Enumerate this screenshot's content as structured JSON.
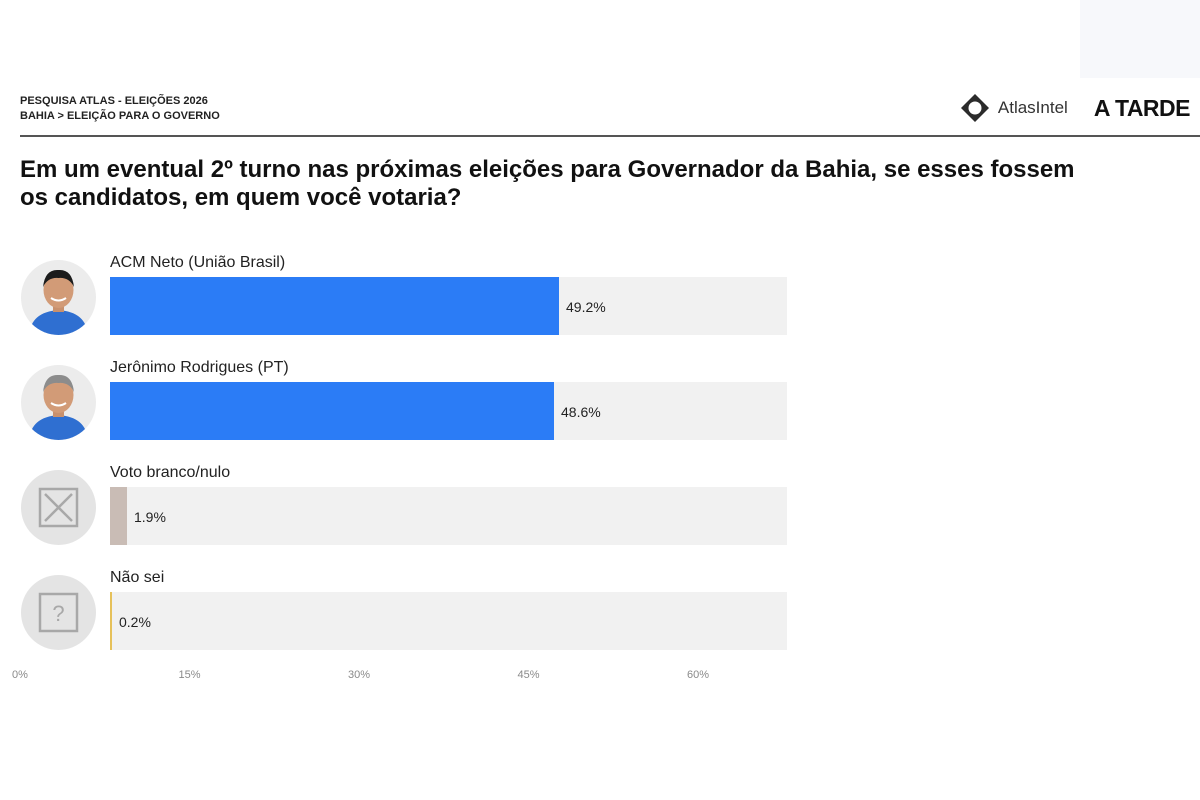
{
  "header": {
    "line1": "PESQUISA ATLAS - ELEIÇÕES 2026",
    "line2": "BAHIA > ELEIÇÃO PARA O GOVERNO",
    "brand_atlas": "AtlasIntel",
    "brand_atarde": "A TARDE"
  },
  "question": "Em um eventual 2º turno nas próximas eleições para Governador da Bahia, se esses fossem os candidatos, em quem você votaria?",
  "colors": {
    "candidate_bar": "#2b7cf6",
    "blank_bar": "#c9bcb5",
    "unsure_bar": "#e6c15a",
    "track": "#f1f1f1"
  },
  "chart_data": {
    "type": "bar",
    "orientation": "horizontal",
    "categories": [
      "ACM Neto (União Brasil)",
      "Jerônimo Rodrigues (PT)",
      "Voto branco/nulo",
      "Não sei"
    ],
    "values": [
      49.2,
      48.6,
      1.9,
      0.2
    ],
    "value_labels": [
      "49.2%",
      "48.6%",
      "1.9%",
      "0.2%"
    ],
    "icons": [
      "candidate-photo",
      "candidate-photo",
      "x-box-icon",
      "question-box-icon"
    ],
    "bar_colors": [
      "#2b7cf6",
      "#2b7cf6",
      "#c9bcb5",
      "#e6c15a"
    ],
    "xlim": [
      0,
      60
    ],
    "x_ticks": [
      "0%",
      "15%",
      "30%",
      "45%",
      "60%"
    ],
    "grid": false
  }
}
